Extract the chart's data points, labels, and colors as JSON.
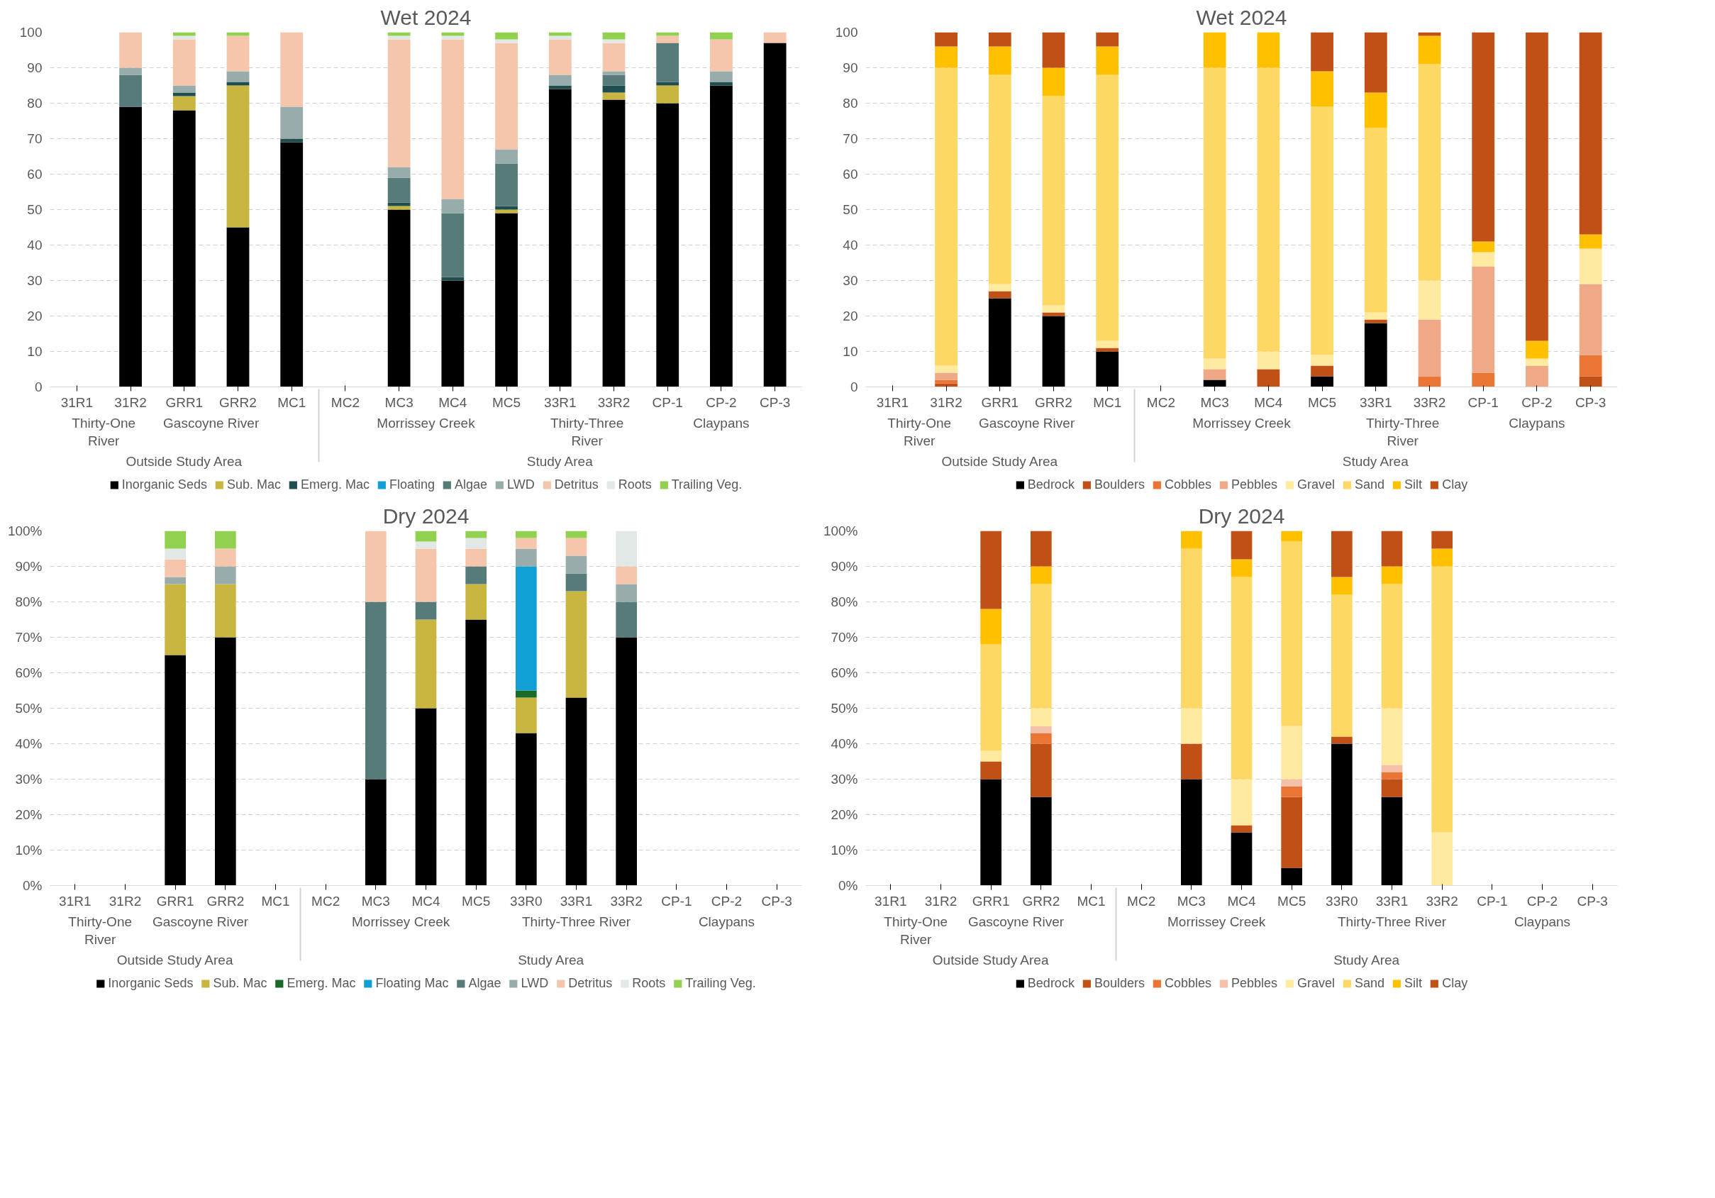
{
  "chart_data": [
    {
      "type": "bar",
      "stacked": true,
      "title": "Wet 2024",
      "categories": [
        "31R1",
        "31R2",
        "GRR1",
        "GRR2",
        "MC1",
        "MC2",
        "MC3",
        "MC4",
        "MC5",
        "33R1",
        "33R2",
        "CP-1",
        "CP-2",
        "CP-3"
      ],
      "ylim": [
        0,
        100
      ],
      "yticks": [
        0,
        10,
        20,
        30,
        40,
        50,
        60,
        70,
        80,
        90,
        100
      ],
      "grid": "y",
      "legend": "bottom",
      "annotations": [
        "Thirty-One River",
        "Gascoyne River",
        "Morrissey Creek",
        "Thirty-Three River",
        "Claypans",
        "Outside Study Area",
        "Study Area"
      ],
      "series": [
        {
          "name": "Inorganic Seds",
          "color": "#000000",
          "values": [
            null,
            79,
            78,
            45,
            69,
            null,
            50,
            30,
            49,
            84,
            81,
            80,
            85,
            97
          ]
        },
        {
          "name": "Sub. Mac",
          "color": "#c9b641",
          "values": [
            null,
            null,
            4,
            40,
            null,
            null,
            1,
            null,
            1,
            null,
            2,
            5,
            null,
            null
          ]
        },
        {
          "name": "Emerg. Mac",
          "color": "#1f4e4e",
          "values": [
            null,
            null,
            1,
            1,
            1,
            null,
            1,
            1,
            1,
            1,
            2,
            1,
            1,
            null
          ]
        },
        {
          "name": "Floating",
          "color": "#119fd6",
          "values": [
            null,
            null,
            null,
            null,
            null,
            null,
            null,
            null,
            null,
            null,
            null,
            null,
            null,
            null
          ]
        },
        {
          "name": "Algae",
          "color": "#567b78",
          "values": [
            null,
            9,
            null,
            null,
            null,
            null,
            7,
            18,
            12,
            null,
            3,
            11,
            null,
            null
          ]
        },
        {
          "name": "LWD",
          "color": "#98adab",
          "values": [
            null,
            2,
            2,
            3,
            9,
            null,
            3,
            4,
            4,
            3,
            1,
            null,
            3,
            null
          ]
        },
        {
          "name": "Detritus",
          "color": "#f6c6ac",
          "values": [
            null,
            10,
            13,
            10,
            21,
            null,
            36,
            45,
            30,
            10,
            8,
            2,
            9,
            3
          ]
        },
        {
          "name": "Roots",
          "color": "#e2e8e6",
          "values": [
            null,
            null,
            1,
            null,
            null,
            null,
            1,
            1,
            1,
            1,
            1,
            null,
            null,
            null
          ]
        },
        {
          "name": "Trailing Veg.",
          "color": "#92d050",
          "values": [
            null,
            null,
            1,
            1,
            null,
            null,
            1,
            1,
            2,
            1,
            2,
            1,
            2,
            null
          ]
        }
      ]
    },
    {
      "type": "bar",
      "stacked": true,
      "title": "Wet 2024",
      "categories": [
        "31R1",
        "31R2",
        "GRR1",
        "GRR2",
        "MC1",
        "MC2",
        "MC3",
        "MC4",
        "MC5",
        "33R1",
        "33R2",
        "CP-1",
        "CP-2",
        "CP-3"
      ],
      "ylim": [
        0,
        100
      ],
      "yticks": [
        0,
        10,
        20,
        30,
        40,
        50,
        60,
        70,
        80,
        90,
        100
      ],
      "grid": "y",
      "legend": "bottom",
      "annotations": [
        "Thirty-One River",
        "Gascoyne River",
        "Morrissey Creek",
        "Thirty-Three River",
        "Claypans",
        "Outside Study Area",
        "Study Area"
      ],
      "series": [
        {
          "name": "Bedrock",
          "color": "#000000",
          "values": [
            null,
            null,
            25,
            20,
            10,
            null,
            2,
            null,
            3,
            18,
            null,
            null,
            null,
            null
          ]
        },
        {
          "name": "Boulders",
          "color": "#c05016",
          "values": [
            null,
            1,
            2,
            1,
            1,
            null,
            null,
            5,
            3,
            1,
            null,
            null,
            null,
            3
          ]
        },
        {
          "name": "Cobbles",
          "color": "#ea7534",
          "values": [
            null,
            1,
            null,
            null,
            null,
            null,
            null,
            null,
            null,
            null,
            3,
            4,
            null,
            6
          ]
        },
        {
          "name": "Pebbles",
          "color": "#f0a987",
          "values": [
            null,
            2,
            null,
            null,
            null,
            null,
            3,
            null,
            null,
            null,
            16,
            30,
            6,
            20
          ]
        },
        {
          "name": "Gravel",
          "color": "#ffeaa0",
          "values": [
            null,
            2,
            2,
            2,
            2,
            null,
            3,
            5,
            3,
            2,
            11,
            4,
            2,
            10
          ]
        },
        {
          "name": "Sand",
          "color": "#fdd865",
          "values": [
            null,
            84,
            59,
            59,
            75,
            null,
            82,
            80,
            70,
            52,
            61,
            null,
            null,
            null
          ]
        },
        {
          "name": "Silt",
          "color": "#ffc000",
          "values": [
            null,
            6,
            8,
            8,
            8,
            null,
            10,
            10,
            10,
            10,
            8,
            3,
            5,
            4
          ]
        },
        {
          "name": "Clay",
          "color": "#c05016",
          "values": [
            null,
            4,
            4,
            10,
            4,
            null,
            null,
            null,
            11,
            17,
            1,
            59,
            87,
            57
          ]
        }
      ]
    },
    {
      "type": "bar",
      "stacked": true,
      "title": "Dry 2024",
      "categories": [
        "31R1",
        "31R2",
        "GRR1",
        "GRR2",
        "MC1",
        "MC2",
        "MC3",
        "MC4",
        "MC5",
        "33R0",
        "33R1",
        "33R2",
        "CP-1",
        "CP-2",
        "CP-3"
      ],
      "ylim": [
        0,
        100
      ],
      "yticks": [
        {
          "value": 0,
          "label": "0%"
        },
        {
          "value": 10,
          "label": "10%"
        },
        {
          "value": 20,
          "label": "20%"
        },
        {
          "value": 30,
          "label": "30%"
        },
        {
          "value": 40,
          "label": "40%"
        },
        {
          "value": 50,
          "label": "50%"
        },
        {
          "value": 60,
          "label": "60%"
        },
        {
          "value": 70,
          "label": "70%"
        },
        {
          "value": 80,
          "label": "80%"
        },
        {
          "value": 90,
          "label": "90%"
        },
        {
          "value": 100,
          "label": "100%"
        }
      ],
      "grid": "y",
      "legend": "bottom",
      "annotations": [
        "Thirty-One River",
        "Gascoyne River",
        "Morrissey Creek",
        "Thirty-Three River",
        "Claypans",
        "Outside Study Area",
        "Study Area"
      ],
      "series": [
        {
          "name": "Inorganic Seds",
          "color": "#000000",
          "values": [
            null,
            null,
            65,
            70,
            null,
            null,
            30,
            50,
            75,
            43,
            53,
            70,
            null,
            null,
            null
          ]
        },
        {
          "name": "Sub. Mac",
          "color": "#c9b641",
          "values": [
            null,
            null,
            20,
            15,
            null,
            null,
            null,
            25,
            10,
            10,
            30,
            null,
            null,
            null,
            null
          ]
        },
        {
          "name": "Emerg. Mac",
          "color": "#1a6b2a",
          "values": [
            null,
            null,
            null,
            null,
            null,
            null,
            null,
            null,
            null,
            2,
            null,
            null,
            null,
            null,
            null
          ]
        },
        {
          "name": "Floating Mac",
          "color": "#119fd6",
          "values": [
            null,
            null,
            null,
            null,
            null,
            null,
            null,
            null,
            null,
            35,
            null,
            null,
            null,
            null,
            null
          ]
        },
        {
          "name": "Algae",
          "color": "#567b78",
          "values": [
            null,
            null,
            null,
            null,
            null,
            null,
            50,
            5,
            5,
            null,
            5,
            10,
            null,
            null,
            null
          ]
        },
        {
          "name": "LWD",
          "color": "#98adab",
          "values": [
            null,
            null,
            2,
            5,
            null,
            null,
            null,
            null,
            null,
            5,
            5,
            5,
            null,
            null,
            null
          ]
        },
        {
          "name": "Detritus",
          "color": "#f6c6ac",
          "values": [
            null,
            null,
            5,
            5,
            null,
            null,
            20,
            15,
            5,
            3,
            5,
            5,
            null,
            null,
            null
          ]
        },
        {
          "name": "Roots",
          "color": "#e2e8e6",
          "values": [
            null,
            null,
            3,
            null,
            null,
            null,
            null,
            2,
            3,
            null,
            null,
            10,
            null,
            null,
            null
          ]
        },
        {
          "name": "Trailing Veg.",
          "color": "#92d050",
          "values": [
            null,
            null,
            5,
            5,
            null,
            null,
            null,
            3,
            2,
            2,
            2,
            null,
            null,
            null,
            null
          ]
        }
      ]
    },
    {
      "type": "bar",
      "stacked": true,
      "title": "Dry 2024",
      "categories": [
        "31R1",
        "31R2",
        "GRR1",
        "GRR2",
        "MC1",
        "MC2",
        "MC3",
        "MC4",
        "MC5",
        "33R0",
        "33R1",
        "33R2",
        "CP-1",
        "CP-2",
        "CP-3"
      ],
      "ylim": [
        0,
        100
      ],
      "yticks": [
        {
          "value": 0,
          "label": "0%"
        },
        {
          "value": 10,
          "label": "10%"
        },
        {
          "value": 20,
          "label": "20%"
        },
        {
          "value": 30,
          "label": "30%"
        },
        {
          "value": 40,
          "label": "40%"
        },
        {
          "value": 50,
          "label": "50%"
        },
        {
          "value": 60,
          "label": "60%"
        },
        {
          "value": 70,
          "label": "70%"
        },
        {
          "value": 80,
          "label": "80%"
        },
        {
          "value": 90,
          "label": "90%"
        },
        {
          "value": 100,
          "label": "100%"
        }
      ],
      "grid": "y",
      "legend": "bottom",
      "annotations": [
        "Thirty-One River",
        "Gascoyne River",
        "Morrissey Creek",
        "Thirty-Three River",
        "Claypans",
        "Outside Study Area",
        "Study Area"
      ],
      "series": [
        {
          "name": "Bedrock",
          "color": "#000000",
          "values": [
            null,
            null,
            30,
            25,
            null,
            null,
            30,
            15,
            5,
            40,
            25,
            null,
            null,
            null,
            null
          ]
        },
        {
          "name": "Boulders",
          "color": "#c05016",
          "values": [
            null,
            null,
            5,
            15,
            null,
            null,
            10,
            2,
            20,
            2,
            5,
            null,
            null,
            null,
            null
          ]
        },
        {
          "name": "Cobbles",
          "color": "#ea7534",
          "values": [
            null,
            null,
            null,
            3,
            null,
            null,
            null,
            null,
            3,
            null,
            2,
            null,
            null,
            null,
            null
          ]
        },
        {
          "name": "Pebbles",
          "color": "#f4c0a8",
          "values": [
            null,
            null,
            null,
            2,
            null,
            null,
            null,
            null,
            2,
            null,
            2,
            null,
            null,
            null,
            null
          ]
        },
        {
          "name": "Gravel",
          "color": "#ffeaa0",
          "values": [
            null,
            null,
            3,
            5,
            null,
            null,
            10,
            13,
            15,
            null,
            16,
            15,
            null,
            null,
            null
          ]
        },
        {
          "name": "Sand",
          "color": "#fdd865",
          "values": [
            null,
            null,
            30,
            35,
            null,
            null,
            45,
            57,
            52,
            40,
            35,
            75,
            null,
            null,
            null
          ]
        },
        {
          "name": "Silt",
          "color": "#ffc000",
          "values": [
            null,
            null,
            10,
            5,
            null,
            null,
            5,
            5,
            3,
            5,
            5,
            5,
            null,
            null,
            null
          ]
        },
        {
          "name": "Clay",
          "color": "#c05016",
          "values": [
            null,
            null,
            22,
            10,
            null,
            null,
            null,
            8,
            null,
            13,
            10,
            5,
            null,
            null,
            null
          ]
        }
      ]
    }
  ]
}
